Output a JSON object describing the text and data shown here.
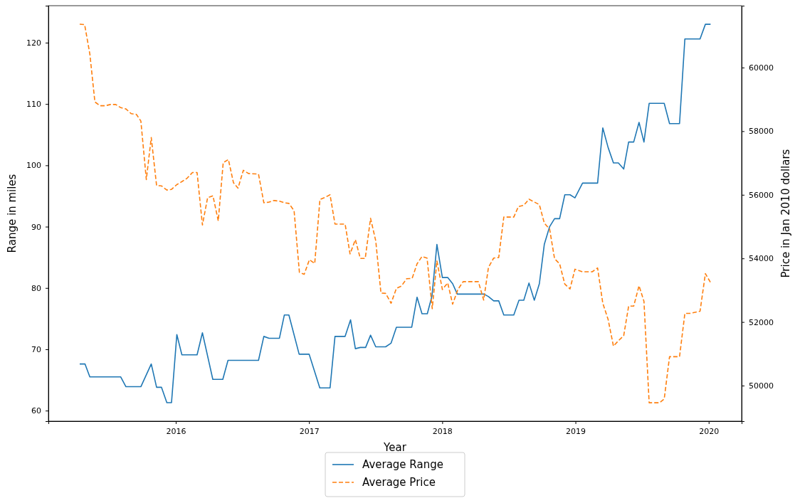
{
  "chart_data": {
    "type": "line",
    "xlabel": "Year",
    "ylabel": "Range in miles",
    "y2label": "Price in Jan 2010 dollars",
    "xlim": [
      2015.044,
      2020.247
    ],
    "xticks": [
      2016,
      2017,
      2018,
      2019,
      2020
    ],
    "ylim": [
      58.28,
      126.03
    ],
    "yticks": [
      60,
      70,
      80,
      90,
      100,
      110,
      120
    ],
    "y2lim": [
      48882,
      61946
    ],
    "y2ticks": [
      50000,
      52000,
      54000,
      56000,
      58000,
      60000
    ],
    "legend": "bottom",
    "grid": false,
    "marker": "none",
    "series": [
      {
        "name": "Average Range",
        "color": "#1f77b4",
        "line_style": "solid",
        "x": [
          2015.279,
          2015.319,
          2015.355,
          2015.587,
          2015.626,
          2015.738,
          2015.816,
          2015.856,
          2015.893,
          2015.933,
          2015.968,
          2016.008,
          2016.046,
          2016.16,
          2016.2,
          2016.278,
          2016.353,
          2016.392,
          2016.621,
          2016.661,
          2016.7,
          2016.778,
          2016.815,
          2016.849,
          2016.926,
          2017.001,
          2017.081,
          2017.158,
          2017.195,
          2017.271,
          2017.312,
          2017.348,
          2017.385,
          2017.425,
          2017.462,
          2017.501,
          2017.575,
          2017.616,
          2017.656,
          2017.771,
          2017.811,
          2017.848,
          2017.888,
          2017.923,
          2017.96,
          2018.001,
          2018.041,
          2018.078,
          2018.113,
          2018.277,
          2018.313,
          2018.347,
          2018.386,
          2018.424,
          2018.462,
          2018.537,
          2018.576,
          2018.612,
          2018.651,
          2018.691,
          2018.729,
          2018.766,
          2018.806,
          2018.843,
          2018.881,
          2018.92,
          2018.959,
          2018.996,
          2019.053,
          2019.166,
          2019.205,
          2019.245,
          2019.285,
          2019.322,
          2019.362,
          2019.399,
          2019.437,
          2019.477,
          2019.514,
          2019.553,
          2019.666,
          2019.706,
          2019.781,
          2019.821,
          2019.935,
          2019.975,
          2020.014
        ],
        "values": [
          67.6,
          67.6,
          65.5,
          65.5,
          63.9,
          63.9,
          67.6,
          63.8,
          63.8,
          61.3,
          61.3,
          72.4,
          69.1,
          69.1,
          72.7,
          65.1,
          65.1,
          68.2,
          68.2,
          72.1,
          71.8,
          71.8,
          75.6,
          75.6,
          69.2,
          69.2,
          63.7,
          63.7,
          72.1,
          72.1,
          74.8,
          70.1,
          70.3,
          70.3,
          72.3,
          70.4,
          70.4,
          71.0,
          73.6,
          73.6,
          78.5,
          75.8,
          75.8,
          78.7,
          87.1,
          81.7,
          81.7,
          80.7,
          79.0,
          79.0,
          79.0,
          78.6,
          77.9,
          77.9,
          75.6,
          75.6,
          78.0,
          78.0,
          80.8,
          78.0,
          80.7,
          87.1,
          90.0,
          91.3,
          91.3,
          95.2,
          95.2,
          94.7,
          97.1,
          97.1,
          106.1,
          102.9,
          100.4,
          100.4,
          99.4,
          103.8,
          103.8,
          107.0,
          103.8,
          110.1,
          110.1,
          106.8,
          106.8,
          120.6,
          120.6,
          123.0,
          123.0
        ]
      },
      {
        "name": "Average Price",
        "color": "#ff7f0e",
        "line_style": "dashed",
        "axis": "y2",
        "x": [
          2015.279,
          2015.316,
          2015.355,
          2015.393,
          2015.432,
          2015.47,
          2015.51,
          2015.549,
          2015.587,
          2015.626,
          2015.666,
          2015.704,
          2015.738,
          2015.779,
          2015.816,
          2015.856,
          2015.893,
          2015.933,
          2015.968,
          2016.008,
          2016.048,
          2016.085,
          2016.125,
          2016.16,
          2016.2,
          2016.239,
          2016.279,
          2016.319,
          2016.356,
          2016.395,
          2016.433,
          2016.467,
          2016.507,
          2016.546,
          2016.621,
          2016.661,
          2016.7,
          2016.738,
          2016.778,
          2016.815,
          2016.849,
          2016.888,
          2016.928,
          2016.964,
          2017.003,
          2017.043,
          2017.082,
          2017.12,
          2017.158,
          2017.195,
          2017.271,
          2017.308,
          2017.348,
          2017.385,
          2017.422,
          2017.462,
          2017.501,
          2017.54,
          2017.575,
          2017.616,
          2017.656,
          2017.693,
          2017.733,
          2017.774,
          2017.811,
          2017.848,
          2017.886,
          2017.925,
          2017.96,
          2018.001,
          2018.041,
          2018.078,
          2018.117,
          2018.157,
          2018.271,
          2018.311,
          2018.347,
          2018.386,
          2018.424,
          2018.462,
          2018.537,
          2018.572,
          2018.612,
          2018.651,
          2018.729,
          2018.766,
          2018.806,
          2018.843,
          2018.881,
          2018.92,
          2018.959,
          2018.996,
          2019.053,
          2019.126,
          2019.166,
          2019.205,
          2019.245,
          2019.285,
          2019.322,
          2019.362,
          2019.399,
          2019.437,
          2019.477,
          2019.514,
          2019.553,
          2019.631,
          2019.666,
          2019.706,
          2019.781,
          2019.821,
          2019.859,
          2019.935,
          2019.975,
          2020.014
        ],
        "values": [
          61365,
          61350,
          60430,
          58920,
          58800,
          58800,
          58840,
          58840,
          58740,
          58700,
          58550,
          58530,
          58320,
          56480,
          57800,
          56290,
          56280,
          56150,
          56170,
          56320,
          56420,
          56520,
          56700,
          56700,
          55050,
          55910,
          55970,
          55180,
          57010,
          57110,
          56380,
          56210,
          56770,
          56670,
          56650,
          55750,
          55770,
          55820,
          55800,
          55750,
          55730,
          55500,
          53560,
          53500,
          53960,
          53840,
          55850,
          55920,
          56000,
          55080,
          55080,
          54140,
          54590,
          54000,
          54000,
          55260,
          54550,
          52910,
          52900,
          52590,
          53060,
          53130,
          53360,
          53370,
          53830,
          54060,
          54010,
          52420,
          53920,
          53020,
          53230,
          52560,
          53020,
          53270,
          53270,
          52690,
          53720,
          54010,
          54030,
          55300,
          55300,
          55630,
          55670,
          55860,
          55690,
          55110,
          54920,
          53990,
          53830,
          53190,
          53040,
          53660,
          53580,
          53580,
          53700,
          52590,
          52080,
          51240,
          51410,
          51570,
          52500,
          52500,
          53140,
          52650,
          49460,
          49460,
          49580,
          50910,
          50910,
          52270,
          52270,
          52340,
          53520,
          53240
        ]
      }
    ]
  }
}
